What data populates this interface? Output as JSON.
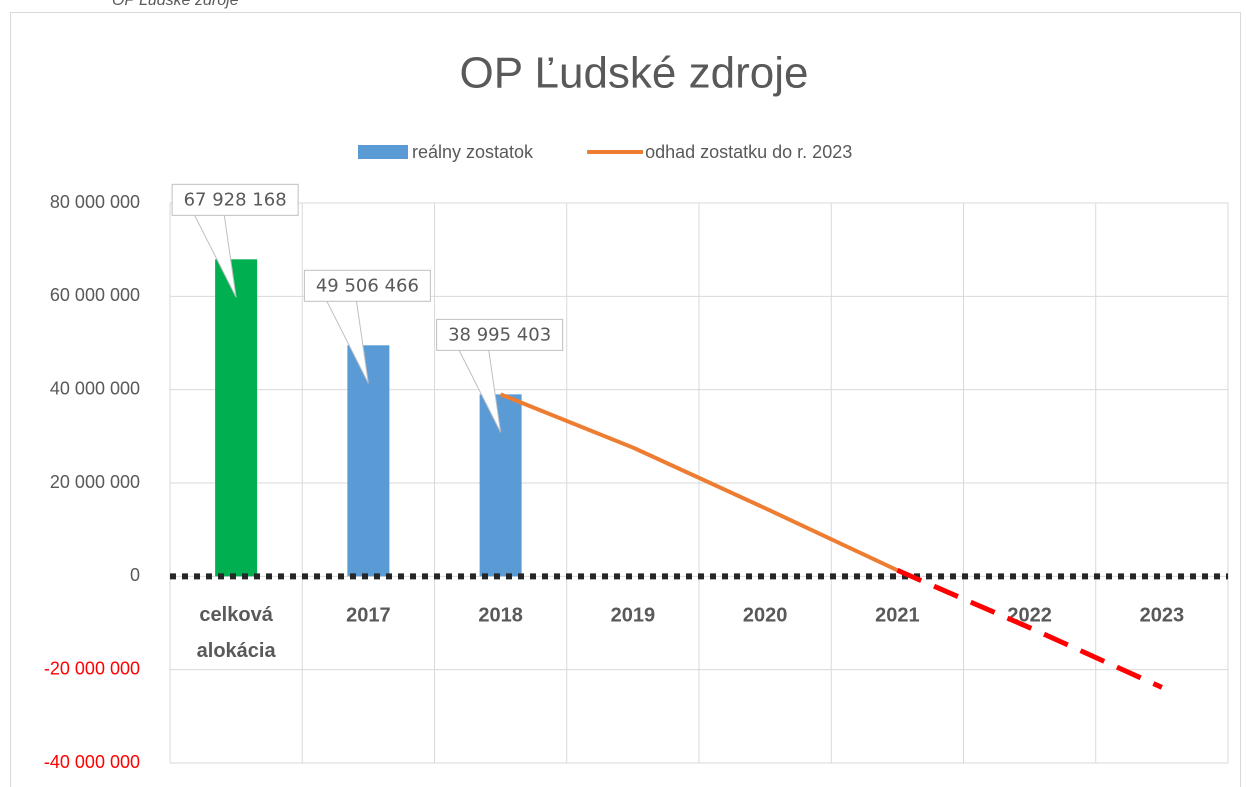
{
  "caption": "OP Ľudské zdroje",
  "chart_data": {
    "type": "combo",
    "title": "OP Ľudské zdroje",
    "categories": [
      "celková alokácia",
      "2017",
      "2018",
      "2019",
      "2020",
      "2021",
      "2022",
      "2023"
    ],
    "series": [
      {
        "name": "reálny zostatok",
        "type": "bar",
        "color": "#5b9bd5",
        "colors": [
          "#00b050",
          null,
          null,
          null,
          null,
          null,
          null,
          null
        ],
        "values": [
          67928168,
          49506466,
          38995403,
          null,
          null,
          null,
          null,
          null
        ],
        "value_labels": [
          "67 928 168",
          "49 506 466",
          "38 995 403",
          null,
          null,
          null,
          null,
          null
        ]
      },
      {
        "name": "odhad zostatku do r. 2023",
        "type": "line",
        "color": "#ed7d31",
        "values": [
          null,
          null,
          38995403,
          27600000,
          14600000,
          1300000,
          null,
          null
        ]
      },
      {
        "type": "line",
        "color": "#ff0000",
        "dashed": true,
        "values": [
          null,
          null,
          null,
          null,
          null,
          1300000,
          -11000000,
          -23800000
        ]
      }
    ],
    "ylim": [
      -40000000,
      80000000
    ],
    "yticks": [
      {
        "value": -40000000,
        "label": "-40 000 000"
      },
      {
        "value": -20000000,
        "label": "-20 000 000"
      },
      {
        "value": 0,
        "label": "0"
      },
      {
        "value": 20000000,
        "label": "20 000 000"
      },
      {
        "value": 40000000,
        "label": "40 000 000"
      },
      {
        "value": 60000000,
        "label": "60 000 000"
      },
      {
        "value": 80000000,
        "label": "80 000 000"
      }
    ],
    "negative_tick_color": "#ff0000",
    "zero_line": "dotted",
    "grid": true,
    "legend": "top"
  }
}
